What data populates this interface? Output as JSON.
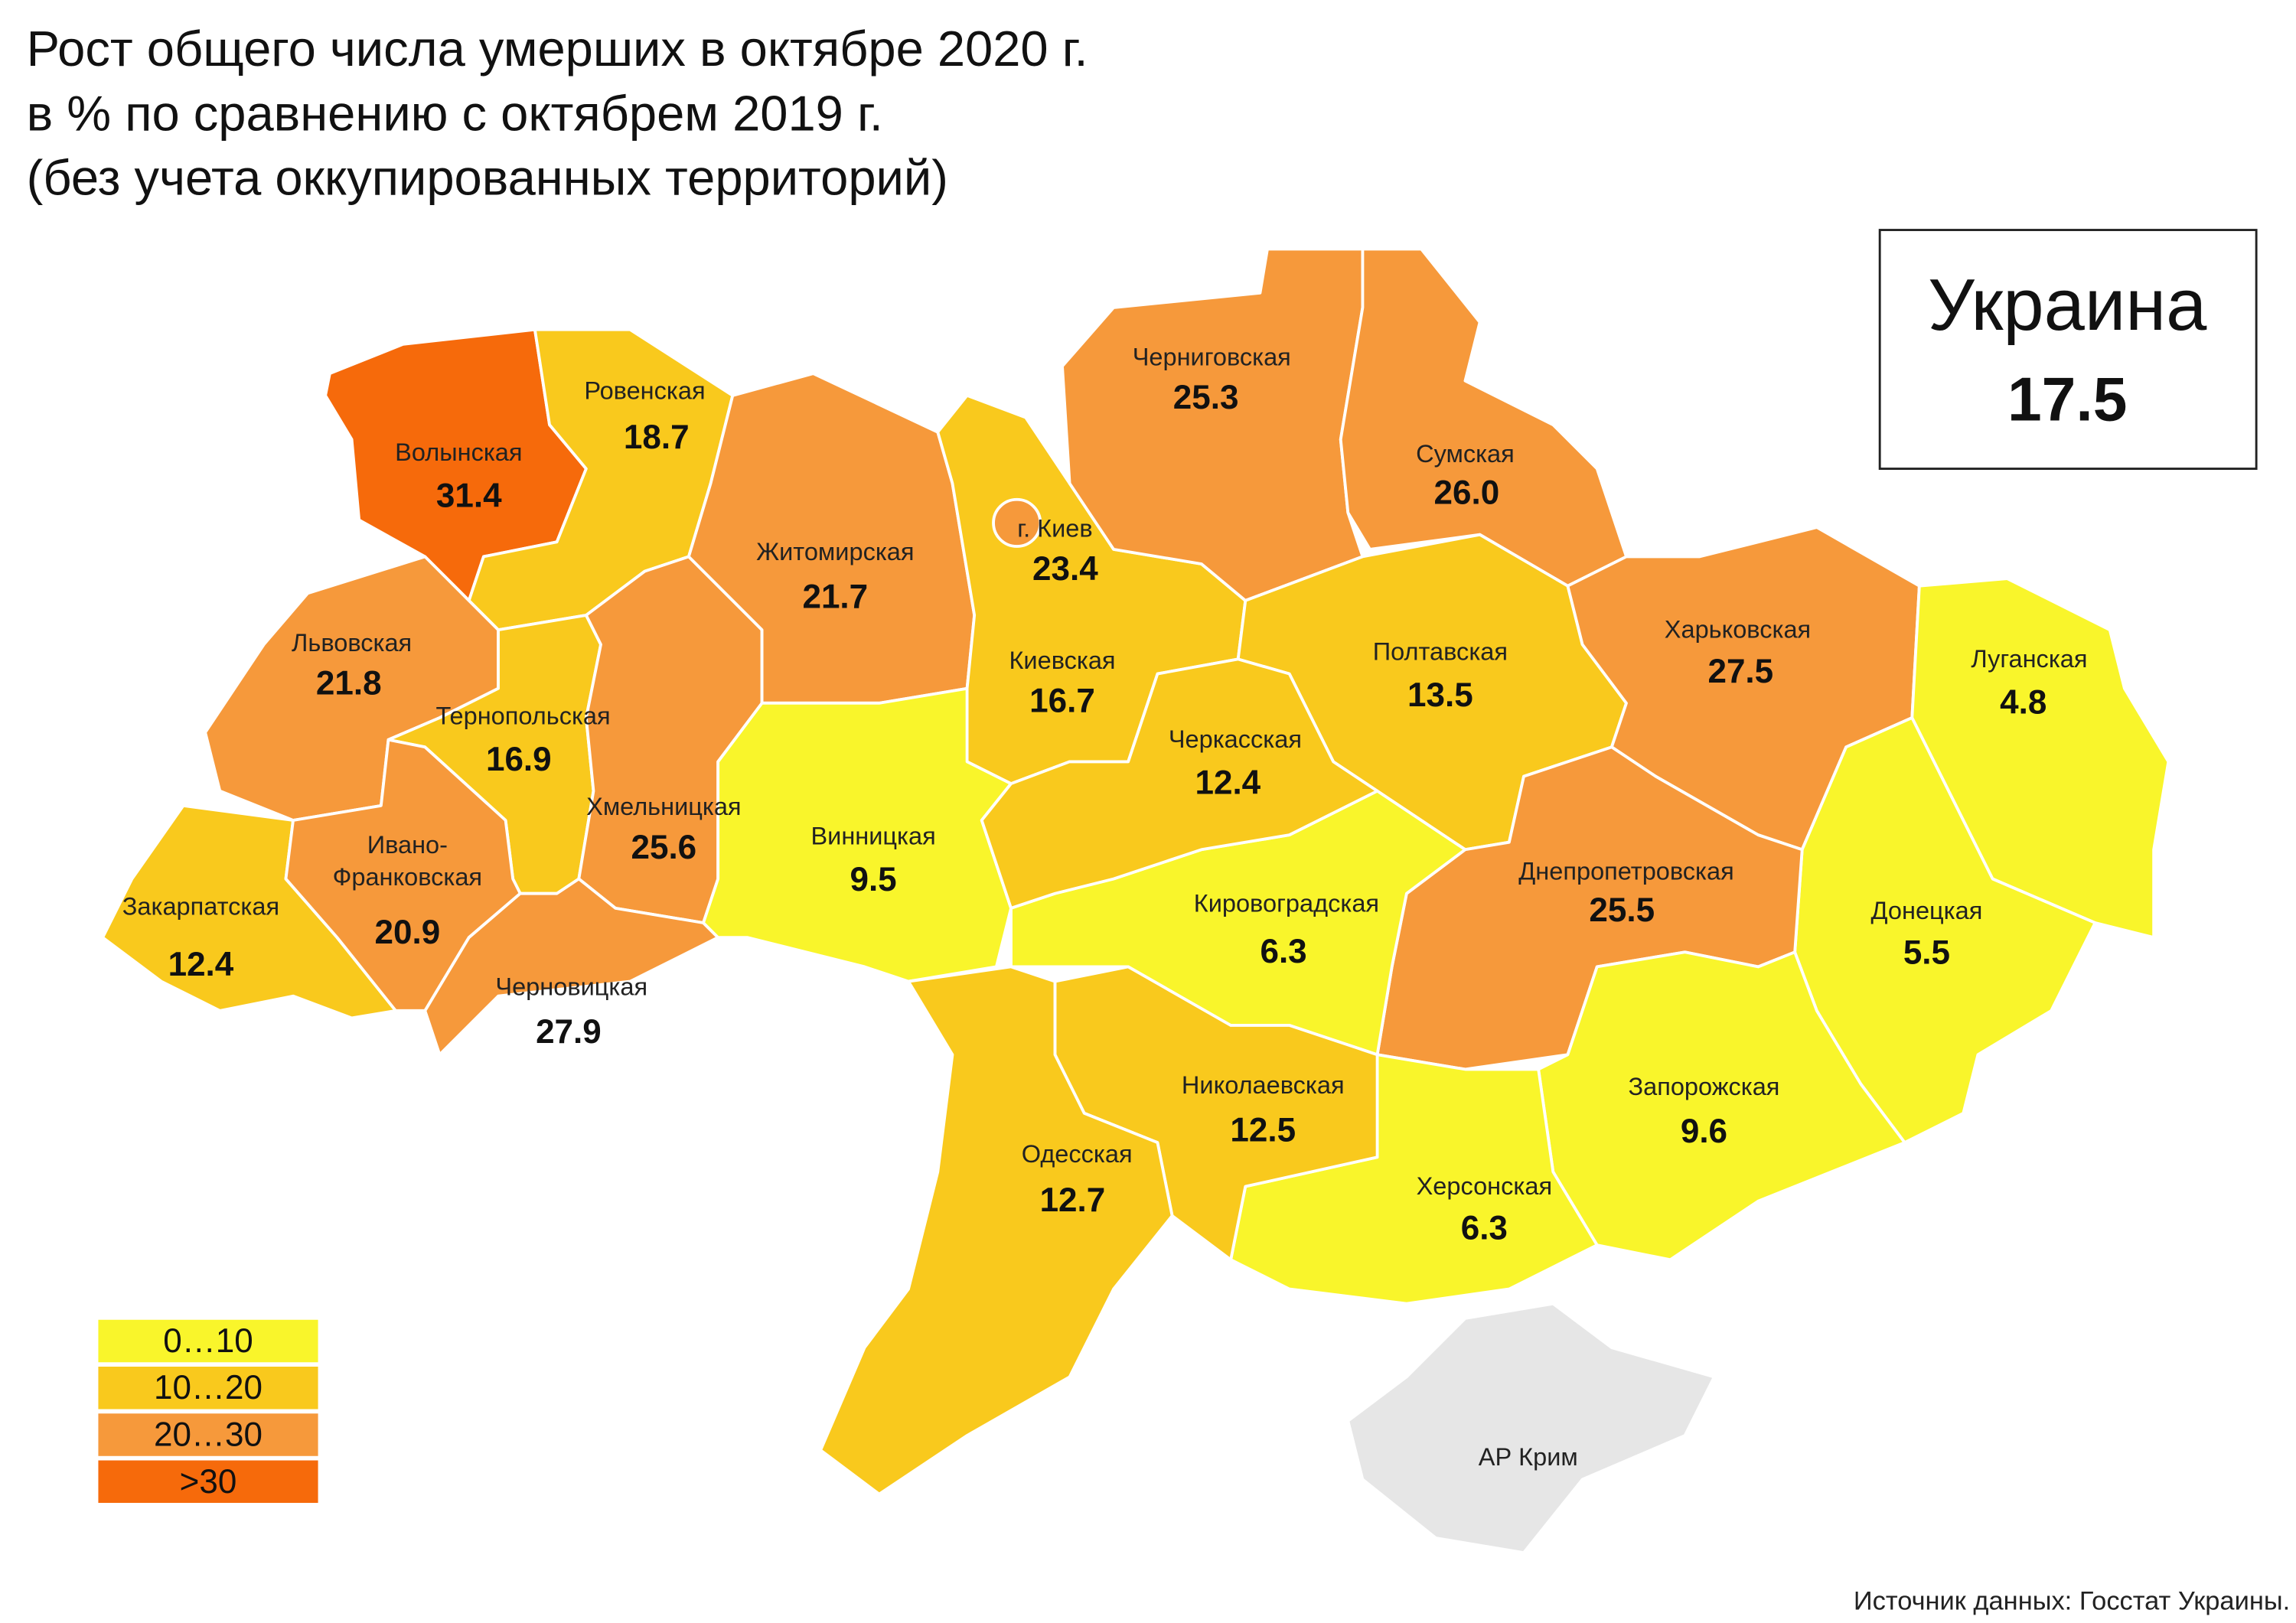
{
  "title": [
    "Рост общего числа умерших в октябре 2020 г.",
    "в % по сравнению с октябрем 2019 г.",
    "(без учета оккупированных территорий)"
  ],
  "total": {
    "name": "Украина",
    "value": 17.5
  },
  "legend": {
    "bins": [
      0,
      10,
      20,
      30
    ],
    "labels": [
      "0…10",
      "10…20",
      "20…30",
      ">30"
    ],
    "colors": [
      "#f9f52b",
      "#f9c91d",
      "#f6993b",
      "#f66a0b"
    ]
  },
  "regions": [
    {
      "name": "Волынская",
      "value": 31.4
    },
    {
      "name": "Ровенская",
      "value": 18.7
    },
    {
      "name": "Львовская",
      "value": 21.8
    },
    {
      "name": "Тернопольская",
      "value": 16.9
    },
    {
      "name": "Хмельницкая",
      "value": 25.6
    },
    {
      "name": "Закарпатская",
      "value": 12.4
    },
    {
      "name": [
        "Ивано-",
        "Франковская"
      ],
      "value": 20.9
    },
    {
      "name": "Черновицкая",
      "value": 27.9
    },
    {
      "name": "Житомирская",
      "value": 21.7
    },
    {
      "name": "г. Киев",
      "value": 23.4
    },
    {
      "name": "Киевская",
      "value": 16.7
    },
    {
      "name": "Винницкая",
      "value": 9.5
    },
    {
      "name": "Черниговская",
      "value": 25.3
    },
    {
      "name": "Сумская",
      "value": 26.0,
      "value_label": "26.0"
    },
    {
      "name": "Полтавская",
      "value": 13.5
    },
    {
      "name": "Харьковская",
      "value": 27.5
    },
    {
      "name": "Луганская",
      "value": 4.8
    },
    {
      "name": "Донецкая",
      "value": 5.5
    },
    {
      "name": "Днепропетровская",
      "value": 25.5
    },
    {
      "name": "Запорожская",
      "value": 9.6
    },
    {
      "name": "Херсонская",
      "value": 6.3
    },
    {
      "name": "Кировоградская",
      "value": 6.3
    },
    {
      "name": "Черкасская",
      "value": 12.4
    },
    {
      "name": "Николаевская",
      "value": 12.5
    },
    {
      "name": "Одесская",
      "value": 12.7
    }
  ],
  "crimea": {
    "name": "АР Крим"
  },
  "source": "Источник данных: Госстат Украины."
}
